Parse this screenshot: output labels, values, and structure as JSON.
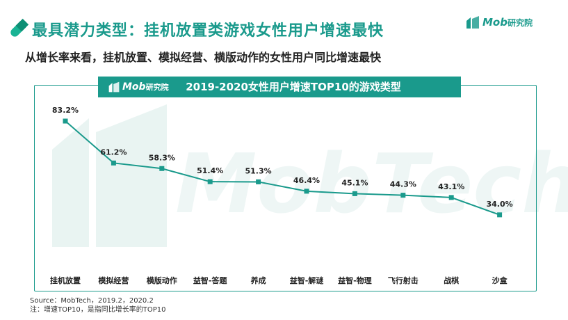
{
  "header": {
    "title": "最具潜力类型：挂机放置类游戏女性用户增速最快",
    "subtitle": "从增长率来看，挂机放置、模拟经营、横版动作的女性用户同比增速最快",
    "logo_text": "Mob",
    "logo_suffix": "研究院"
  },
  "banner": {
    "logo_text": "Mob",
    "logo_suffix": "研究院",
    "title": "2019-2020女性用户增速TOP10的游戏类型"
  },
  "watermark": "MobTech",
  "chart_data": {
    "type": "line",
    "title": "2019-2020女性用户增速TOP10的游戏类型",
    "xlabel": "",
    "ylabel": "",
    "categories": [
      "挂机放置",
      "模拟经营",
      "横版动作",
      "益智-答题",
      "养成",
      "益智-解谜",
      "益智-物理",
      "飞行射击",
      "战棋",
      "沙盒"
    ],
    "values": [
      83.2,
      61.2,
      58.3,
      51.4,
      51.3,
      46.4,
      45.1,
      44.3,
      43.1,
      34.0
    ],
    "data_labels": [
      "83.2%",
      "61.2%",
      "58.3%",
      "51.4%",
      "51.3%",
      "46.4%",
      "45.1%",
      "44.3%",
      "43.1%",
      "34.0%"
    ],
    "ylim": [
      0,
      100
    ],
    "grid": false,
    "legend": "none",
    "colors": {
      "line": "#1a9a8c",
      "marker": "#1a9a8c"
    }
  },
  "footer": {
    "source": "Source：MobTech，2019.2，2020.2",
    "note": "注：增速TOP10，是指同比增长率的TOP10"
  },
  "colors": {
    "accent": "#1a9a8c",
    "text": "#222222"
  }
}
